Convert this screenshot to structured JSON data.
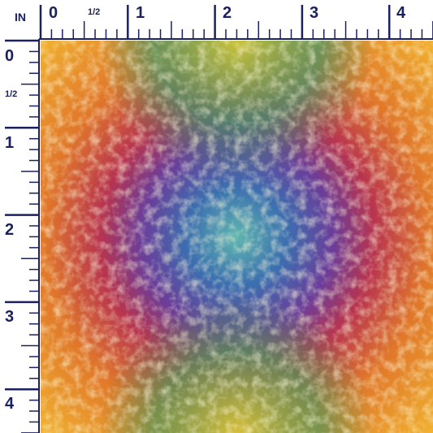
{
  "ruler": {
    "unit": "IN",
    "top_labels": [
      "0",
      "1/2",
      "1",
      "2",
      "3",
      "4"
    ],
    "left_labels": [
      "0",
      "1/2",
      "1",
      "2",
      "3",
      "4"
    ]
  }
}
